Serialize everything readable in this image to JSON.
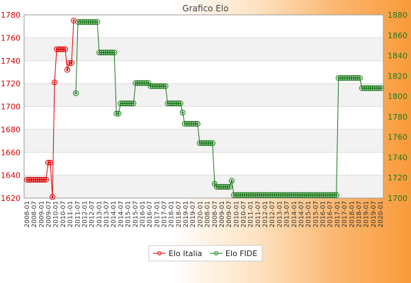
{
  "chart_data": {
    "type": "line",
    "title": "Grafico Elo",
    "x_tick_labels": [
      "2008-01",
      "2008-07",
      "2009-01",
      "2009-07",
      "2010-01",
      "2010-07",
      "2011-01",
      "2011-07",
      "2012-01",
      "2012-07",
      "2013-01",
      "2013-07",
      "2014-01",
      "2014-07",
      "2015-01",
      "2015-07",
      "2016-01",
      "2016-07",
      "2017-01",
      "2017-07",
      "2018-01",
      "2018-07",
      "2019-01",
      "2019-07",
      "2020-01"
    ],
    "y_left": {
      "min": 1620,
      "max": 1780,
      "ticks": [
        1620,
        1640,
        1660,
        1680,
        1700,
        1720,
        1740,
        1760,
        1780
      ],
      "color": "#e00000"
    },
    "y_right": {
      "min": 1700,
      "max": 1880,
      "ticks": [
        1700,
        1720,
        1740,
        1760,
        1780,
        1800,
        1820,
        1840,
        1860,
        1880
      ],
      "color": "#1a7a1a"
    },
    "grid": true,
    "legend": {
      "position": "bottom"
    },
    "series": [
      {
        "name": "Elo Italia",
        "axis": "left",
        "color": "#e00000",
        "values": [
          1636,
          1636,
          1636,
          1636,
          1636,
          1636,
          1636,
          1636,
          1636,
          1636,
          1651,
          1651,
          1621,
          1721,
          1750,
          1750,
          1750,
          1750,
          1750,
          1732,
          1738,
          1738,
          1775
        ]
      },
      {
        "name": "Elo FIDE",
        "axis": "right",
        "color": "#1a7a1a",
        "values": [
          1803,
          1873,
          1873,
          1873,
          1873,
          1873,
          1873,
          1873,
          1873,
          1873,
          1873,
          1843,
          1843,
          1843,
          1843,
          1843,
          1843,
          1843,
          1843,
          1783,
          1783,
          1793,
          1793,
          1793,
          1793,
          1793,
          1793,
          1793,
          1813,
          1813,
          1813,
          1813,
          1813,
          1813,
          1813,
          1810,
          1810,
          1810,
          1810,
          1810,
          1810,
          1810,
          1810,
          1793,
          1793,
          1793,
          1793,
          1793,
          1793,
          1793,
          1784,
          1773,
          1773,
          1773,
          1773,
          1773,
          1773,
          1773,
          1754,
          1754,
          1754,
          1754,
          1754,
          1754,
          1754,
          1714,
          1711,
          1711,
          1711,
          1711,
          1711,
          1711,
          1711,
          1717,
          1703,
          1703,
          1703,
          1703,
          1703,
          1703,
          1703,
          1703,
          1703,
          1703,
          1703,
          1703,
          1703,
          1703,
          1703,
          1703,
          1703,
          1703,
          1703,
          1703,
          1703,
          1703,
          1703,
          1703,
          1703,
          1703,
          1703,
          1703,
          1703,
          1703,
          1703,
          1703,
          1703,
          1703,
          1703,
          1703,
          1703,
          1703,
          1703,
          1703,
          1703,
          1703,
          1703,
          1703,
          1703,
          1703,
          1703,
          1703,
          1703,
          1818,
          1818,
          1818,
          1818,
          1818,
          1818,
          1818,
          1818,
          1818,
          1818,
          1818,
          1808,
          1808,
          1808,
          1808,
          1808,
          1808,
          1808,
          1808,
          1808,
          1808
        ]
      }
    ]
  }
}
